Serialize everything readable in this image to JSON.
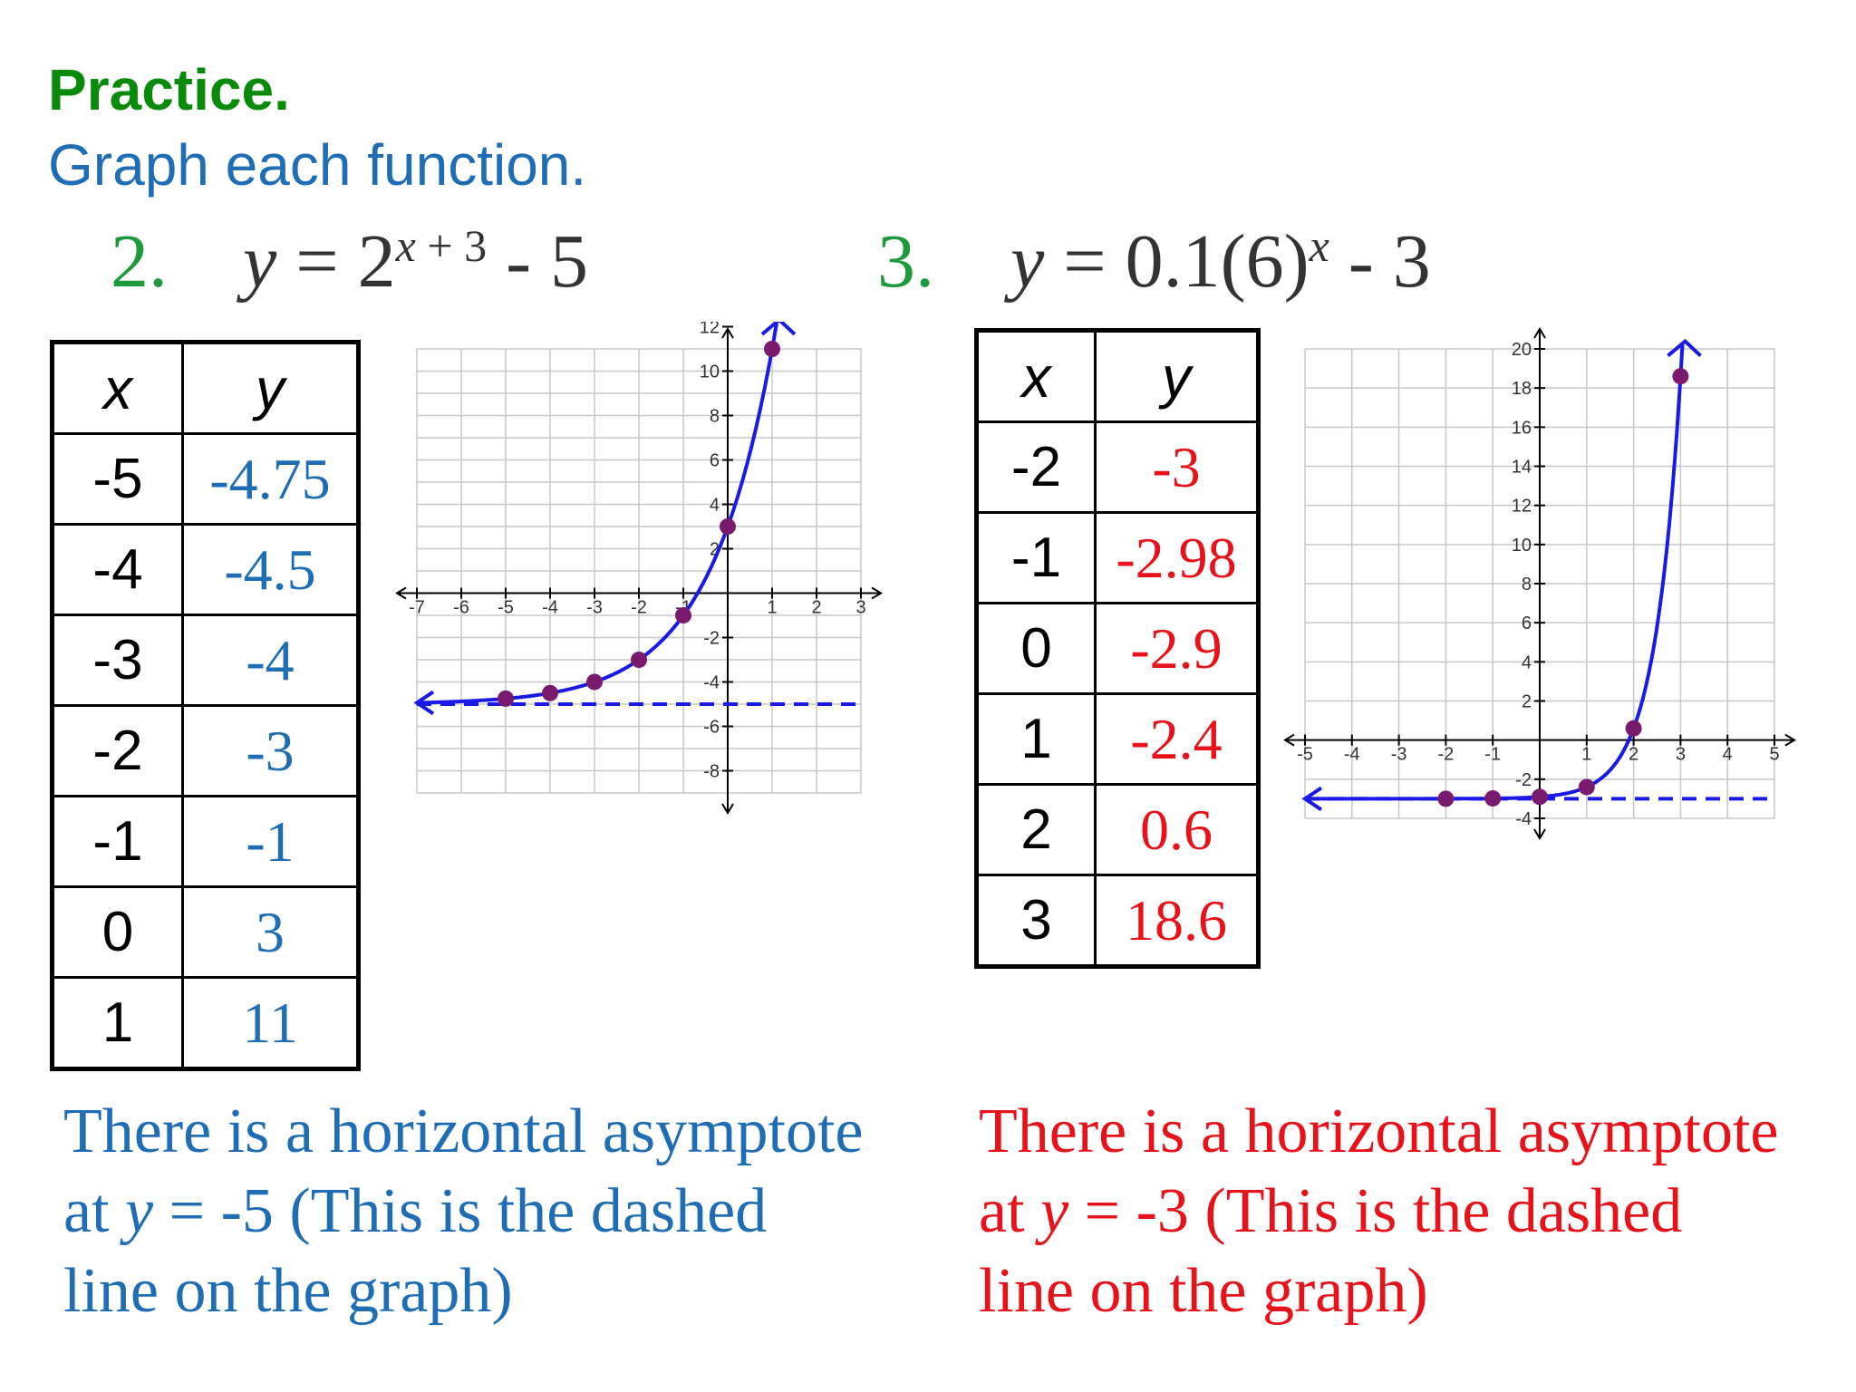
{
  "header": {
    "practice": "Practice.",
    "instruction": "Graph each function."
  },
  "problems": [
    {
      "number": "2.",
      "equation": {
        "lhs": "y",
        "eq": " = ",
        "base": "2",
        "exp_var": "x",
        "exp_rest": " + 3",
        "tail": " - 5"
      },
      "table": {
        "header_x": "x",
        "header_y": "y",
        "rows": [
          {
            "x": "-5",
            "y": "-4.75"
          },
          {
            "x": "-4",
            "y": "-4.5"
          },
          {
            "x": "-3",
            "y": "-4"
          },
          {
            "x": "-2",
            "y": "-3"
          },
          {
            "x": "-1",
            "y": "-1"
          },
          {
            "x": "0",
            "y": "3"
          },
          {
            "x": "1",
            "y": "11"
          }
        ]
      },
      "note": {
        "line1": "There is a horizontal asymptote",
        "line2_pre": "at ",
        "line2_var": "y",
        "line2_post": " = -5 (This is the dashed",
        "line3": "line on the graph)"
      }
    },
    {
      "number": "3.",
      "equation": {
        "lhs": "y",
        "eq": " = ",
        "base": "0.1(6)",
        "exp_var": "x",
        "exp_rest": "",
        "tail": " - 3"
      },
      "table": {
        "header_x": "x",
        "header_y": "y",
        "rows": [
          {
            "x": "-2",
            "y": "-3"
          },
          {
            "x": "-1",
            "y": "-2.98"
          },
          {
            "x": "0",
            "y": "-2.9"
          },
          {
            "x": "1",
            "y": "-2.4"
          },
          {
            "x": "2",
            "y": "0.6"
          },
          {
            "x": "3",
            "y": "18.6"
          }
        ]
      },
      "note": {
        "line1": "There is a horizontal asymptote",
        "line2_pre": "at ",
        "line2_var": "y",
        "line2_post": " = -3 (This is the dashed",
        "line3": "line on the graph)"
      }
    }
  ],
  "colors": {
    "green_title": "#0a8a0a",
    "blue_text": "#1f6eb5",
    "red_text": "#e8121b",
    "curve": "#1a1ae6",
    "point": "#7a1a6e",
    "grid": "#c8c8c8"
  },
  "chart_data": [
    {
      "type": "line",
      "function": "y = 2^(x+3) - 5",
      "x_ticks": [
        -7,
        -6,
        -5,
        -4,
        -3,
        -2,
        -1,
        1,
        2,
        3
      ],
      "y_ticks": [
        -8,
        -6,
        -4,
        -2,
        2,
        4,
        6,
        8,
        10,
        12
      ],
      "xlim": [
        -7,
        3
      ],
      "ylim": [
        -9,
        12
      ],
      "grid": true,
      "asymptote_y": -5,
      "points": [
        {
          "x": -5,
          "y": -4.75
        },
        {
          "x": -4,
          "y": -4.5
        },
        {
          "x": -3,
          "y": -4
        },
        {
          "x": -2,
          "y": -3
        },
        {
          "x": -1,
          "y": -1
        },
        {
          "x": 0,
          "y": 3
        },
        {
          "x": 1,
          "y": 11
        }
      ]
    },
    {
      "type": "line",
      "function": "y = 0.1(6)^x - 3",
      "x_ticks": [
        -5,
        -4,
        -3,
        -2,
        -1,
        1,
        2,
        3,
        4,
        5
      ],
      "y_ticks": [
        -4,
        -2,
        2,
        4,
        6,
        8,
        10,
        12,
        14,
        16,
        18,
        20
      ],
      "xlim": [
        -5,
        5
      ],
      "ylim": [
        -4,
        20
      ],
      "grid": true,
      "asymptote_y": -3,
      "points": [
        {
          "x": -2,
          "y": -3
        },
        {
          "x": -1,
          "y": -2.98
        },
        {
          "x": 0,
          "y": -2.9
        },
        {
          "x": 1,
          "y": -2.4
        },
        {
          "x": 2,
          "y": 0.6
        },
        {
          "x": 3,
          "y": 18.6
        }
      ]
    }
  ]
}
